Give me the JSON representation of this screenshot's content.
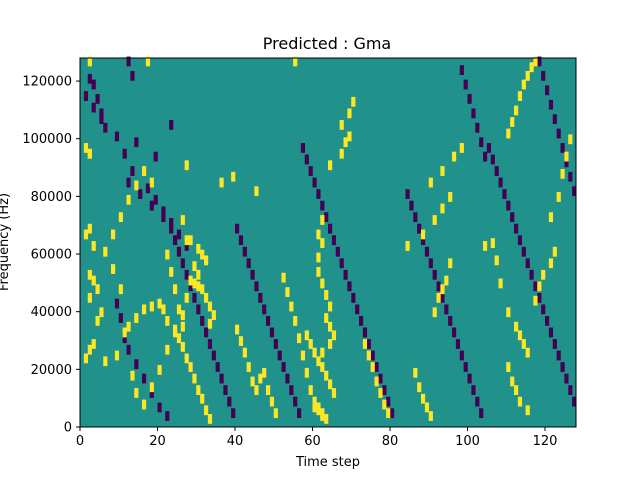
{
  "chart_data": {
    "type": "heatmap",
    "title": "Predicted : Gma",
    "xlabel": "Time step",
    "ylabel": "Frequency (Hz)",
    "xlim": [
      0,
      128
    ],
    "ylim": [
      0,
      128000
    ],
    "xticks": [
      "0",
      "20",
      "40",
      "60",
      "80",
      "100",
      "120"
    ],
    "yticks": [
      "0",
      "20000",
      "40000",
      "60000",
      "80000",
      "100000",
      "120000"
    ],
    "n_cols": 128,
    "n_rows": 128,
    "value_levels": [
      -1,
      0,
      1
    ],
    "colors": {
      "background": "#21918c",
      "low": "#440154",
      "high": "#fde725"
    },
    "grid": false,
    "legend": "none",
    "high_cells": [
      [
        2,
        126
      ],
      [
        17,
        126
      ],
      [
        55,
        126
      ],
      [
        2,
        94
      ],
      [
        1,
        96
      ],
      [
        2,
        94
      ],
      [
        27,
        90
      ],
      [
        36,
        84
      ],
      [
        39,
        86
      ],
      [
        18,
        84
      ],
      [
        45,
        81
      ],
      [
        26,
        71
      ],
      [
        2,
        68
      ],
      [
        1,
        66
      ],
      [
        3,
        62
      ],
      [
        27,
        64
      ],
      [
        28,
        64
      ],
      [
        30,
        61
      ],
      [
        31,
        59
      ],
      [
        32,
        57
      ],
      [
        29,
        55
      ],
      [
        30,
        52
      ],
      [
        29,
        49
      ],
      [
        30,
        48
      ],
      [
        31,
        47
      ],
      [
        32,
        44
      ],
      [
        33,
        41
      ],
      [
        34,
        38
      ],
      [
        33,
        35
      ],
      [
        2,
        52
      ],
      [
        3,
        50
      ],
      [
        4,
        47
      ],
      [
        2,
        44
      ],
      [
        5,
        39
      ],
      [
        4,
        36
      ],
      [
        3,
        28
      ],
      [
        2,
        26
      ],
      [
        1,
        23
      ],
      [
        6,
        22
      ],
      [
        9,
        24
      ],
      [
        11,
        32
      ],
      [
        12,
        34
      ],
      [
        14,
        37
      ],
      [
        16,
        40
      ],
      [
        18,
        41
      ],
      [
        20,
        42
      ],
      [
        21,
        40
      ],
      [
        22,
        36
      ],
      [
        24,
        33
      ],
      [
        25,
        30
      ],
      [
        26,
        27
      ],
      [
        27,
        23
      ],
      [
        28,
        20
      ],
      [
        29,
        16
      ],
      [
        30,
        12
      ],
      [
        31,
        9
      ],
      [
        32,
        5
      ],
      [
        33,
        2
      ],
      [
        40,
        33
      ],
      [
        41,
        29
      ],
      [
        42,
        25
      ],
      [
        43,
        20
      ],
      [
        44,
        15
      ],
      [
        45,
        12
      ],
      [
        46,
        16
      ],
      [
        47,
        18
      ],
      [
        48,
        12
      ],
      [
        49,
        8
      ],
      [
        50,
        4
      ],
      [
        58,
        31
      ],
      [
        59,
        28
      ],
      [
        60,
        25
      ],
      [
        61,
        22
      ],
      [
        62,
        20
      ],
      [
        63,
        17
      ],
      [
        64,
        14
      ],
      [
        65,
        11
      ],
      [
        60,
        8
      ],
      [
        61,
        5
      ],
      [
        62,
        3
      ],
      [
        63,
        2
      ],
      [
        62,
        71
      ],
      [
        61,
        66
      ],
      [
        62,
        63
      ],
      [
        61,
        58
      ],
      [
        61,
        53
      ],
      [
        62,
        49
      ],
      [
        63,
        45
      ],
      [
        64,
        41
      ],
      [
        63,
        37
      ],
      [
        64,
        34
      ],
      [
        65,
        31
      ],
      [
        64,
        28
      ],
      [
        62,
        25
      ],
      [
        61,
        6
      ],
      [
        62,
        4
      ],
      [
        64,
        90
      ],
      [
        67,
        94
      ],
      [
        68,
        98
      ],
      [
        69,
        100
      ],
      [
        67,
        104
      ],
      [
        69,
        108
      ],
      [
        70,
        112
      ],
      [
        73,
        28
      ],
      [
        74,
        24
      ],
      [
        75,
        20
      ],
      [
        76,
        15
      ],
      [
        77,
        11
      ],
      [
        78,
        7
      ],
      [
        79,
        4
      ],
      [
        86,
        18
      ],
      [
        87,
        13
      ],
      [
        88,
        9
      ],
      [
        89,
        6
      ],
      [
        90,
        3
      ],
      [
        91,
        39
      ],
      [
        92,
        44
      ],
      [
        93,
        47
      ],
      [
        94,
        50
      ],
      [
        95,
        56
      ],
      [
        84,
        62
      ],
      [
        88,
        66
      ],
      [
        91,
        71
      ],
      [
        93,
        75
      ],
      [
        95,
        79
      ],
      [
        90,
        84
      ],
      [
        93,
        88
      ],
      [
        96,
        93
      ],
      [
        98,
        96
      ],
      [
        104,
        62
      ],
      [
        106,
        63
      ],
      [
        107,
        57
      ],
      [
        108,
        49
      ],
      [
        110,
        39
      ],
      [
        112,
        34
      ],
      [
        113,
        31
      ],
      [
        114,
        28
      ],
      [
        115,
        25
      ],
      [
        110,
        20
      ],
      [
        111,
        15
      ],
      [
        112,
        12
      ],
      [
        113,
        8
      ],
      [
        115,
        5
      ],
      [
        117,
        43
      ],
      [
        118,
        48
      ],
      [
        119,
        52
      ],
      [
        121,
        56
      ],
      [
        122,
        60
      ],
      [
        121,
        72
      ],
      [
        123,
        79
      ],
      [
        124,
        87
      ],
      [
        125,
        93
      ],
      [
        126,
        99
      ],
      [
        110,
        101
      ],
      [
        111,
        105
      ],
      [
        112,
        109
      ],
      [
        113,
        114
      ],
      [
        114,
        118
      ],
      [
        115,
        121
      ],
      [
        116,
        124
      ],
      [
        117,
        126
      ],
      [
        13,
        17
      ],
      [
        14,
        11
      ],
      [
        16,
        7
      ],
      [
        18,
        13
      ],
      [
        20,
        19
      ],
      [
        22,
        26
      ],
      [
        24,
        32
      ],
      [
        26,
        38
      ],
      [
        27,
        44
      ],
      [
        28,
        50
      ],
      [
        10,
        47
      ],
      [
        8,
        54
      ],
      [
        6,
        60
      ],
      [
        8,
        66
      ],
      [
        10,
        72
      ],
      [
        12,
        78
      ],
      [
        14,
        83
      ],
      [
        16,
        88
      ],
      [
        22,
        59
      ],
      [
        23,
        53
      ],
      [
        24,
        47
      ],
      [
        25,
        40
      ],
      [
        26,
        34
      ],
      [
        52,
        51
      ],
      [
        53,
        46
      ],
      [
        54,
        41
      ],
      [
        55,
        36
      ],
      [
        56,
        30
      ],
      [
        57,
        24
      ],
      [
        58,
        18
      ],
      [
        59,
        12
      ],
      [
        60,
        6
      ]
    ],
    "low_cells": [
      [
        2,
        120
      ],
      [
        3,
        118
      ],
      [
        4,
        113
      ],
      [
        5,
        108
      ],
      [
        6,
        103
      ],
      [
        12,
        126
      ],
      [
        13,
        121
      ],
      [
        23,
        104
      ],
      [
        14,
        98
      ],
      [
        19,
        93
      ],
      [
        12,
        84
      ],
      [
        15,
        80
      ],
      [
        18,
        76
      ],
      [
        21,
        72
      ],
      [
        23,
        68
      ],
      [
        24,
        64
      ],
      [
        25,
        60
      ],
      [
        26,
        56
      ],
      [
        27,
        52
      ],
      [
        28,
        48
      ],
      [
        29,
        44
      ],
      [
        30,
        40
      ],
      [
        31,
        36
      ],
      [
        32,
        32
      ],
      [
        33,
        28
      ],
      [
        34,
        24
      ],
      [
        35,
        20
      ],
      [
        36,
        16
      ],
      [
        37,
        12
      ],
      [
        38,
        8
      ],
      [
        39,
        4
      ],
      [
        40,
        68
      ],
      [
        41,
        64
      ],
      [
        42,
        60
      ],
      [
        43,
        56
      ],
      [
        44,
        52
      ],
      [
        45,
        48
      ],
      [
        46,
        44
      ],
      [
        47,
        40
      ],
      [
        48,
        36
      ],
      [
        49,
        32
      ],
      [
        50,
        28
      ],
      [
        51,
        24
      ],
      [
        52,
        20
      ],
      [
        53,
        16
      ],
      [
        54,
        12
      ],
      [
        55,
        8
      ],
      [
        56,
        4
      ],
      [
        57,
        96
      ],
      [
        58,
        92
      ],
      [
        59,
        88
      ],
      [
        60,
        84
      ],
      [
        61,
        80
      ],
      [
        62,
        76
      ],
      [
        63,
        72
      ],
      [
        64,
        68
      ],
      [
        65,
        64
      ],
      [
        66,
        60
      ],
      [
        67,
        56
      ],
      [
        68,
        52
      ],
      [
        69,
        48
      ],
      [
        70,
        44
      ],
      [
        71,
        40
      ],
      [
        72,
        36
      ],
      [
        73,
        32
      ],
      [
        74,
        28
      ],
      [
        75,
        24
      ],
      [
        76,
        20
      ],
      [
        77,
        16
      ],
      [
        78,
        12
      ],
      [
        79,
        8
      ],
      [
        80,
        4
      ],
      [
        84,
        80
      ],
      [
        85,
        76
      ],
      [
        86,
        72
      ],
      [
        87,
        68
      ],
      [
        88,
        64
      ],
      [
        89,
        60
      ],
      [
        90,
        56
      ],
      [
        91,
        52
      ],
      [
        92,
        48
      ],
      [
        93,
        44
      ],
      [
        94,
        40
      ],
      [
        95,
        36
      ],
      [
        96,
        32
      ],
      [
        97,
        28
      ],
      [
        98,
        24
      ],
      [
        99,
        20
      ],
      [
        100,
        16
      ],
      [
        101,
        12
      ],
      [
        102,
        8
      ],
      [
        103,
        4
      ],
      [
        105,
        96
      ],
      [
        106,
        92
      ],
      [
        107,
        88
      ],
      [
        108,
        84
      ],
      [
        109,
        80
      ],
      [
        110,
        76
      ],
      [
        111,
        72
      ],
      [
        112,
        68
      ],
      [
        113,
        64
      ],
      [
        114,
        60
      ],
      [
        115,
        56
      ],
      [
        116,
        52
      ],
      [
        117,
        48
      ],
      [
        118,
        44
      ],
      [
        119,
        40
      ],
      [
        120,
        36
      ],
      [
        121,
        32
      ],
      [
        122,
        28
      ],
      [
        123,
        24
      ],
      [
        124,
        20
      ],
      [
        125,
        16
      ],
      [
        126,
        12
      ],
      [
        127,
        8
      ],
      [
        98,
        123
      ],
      [
        99,
        118
      ],
      [
        100,
        113
      ],
      [
        101,
        108
      ],
      [
        102,
        103
      ],
      [
        103,
        98
      ],
      [
        104,
        93
      ],
      [
        118,
        126
      ],
      [
        119,
        121
      ],
      [
        120,
        116
      ],
      [
        121,
        111
      ],
      [
        122,
        106
      ],
      [
        123,
        101
      ],
      [
        124,
        96
      ],
      [
        125,
        91
      ],
      [
        126,
        86
      ],
      [
        127,
        81
      ],
      [
        1,
        114
      ],
      [
        3,
        110
      ],
      [
        5,
        106
      ],
      [
        9,
        100
      ],
      [
        11,
        94
      ],
      [
        13,
        88
      ],
      [
        17,
        82
      ],
      [
        19,
        78
      ],
      [
        21,
        74
      ],
      [
        23,
        70
      ],
      [
        25,
        66
      ],
      [
        27,
        62
      ],
      [
        9,
        42
      ],
      [
        10,
        37
      ],
      [
        11,
        30
      ],
      [
        12,
        26
      ],
      [
        14,
        21
      ],
      [
        16,
        16
      ],
      [
        18,
        11
      ],
      [
        20,
        6
      ],
      [
        22,
        3
      ]
    ]
  }
}
